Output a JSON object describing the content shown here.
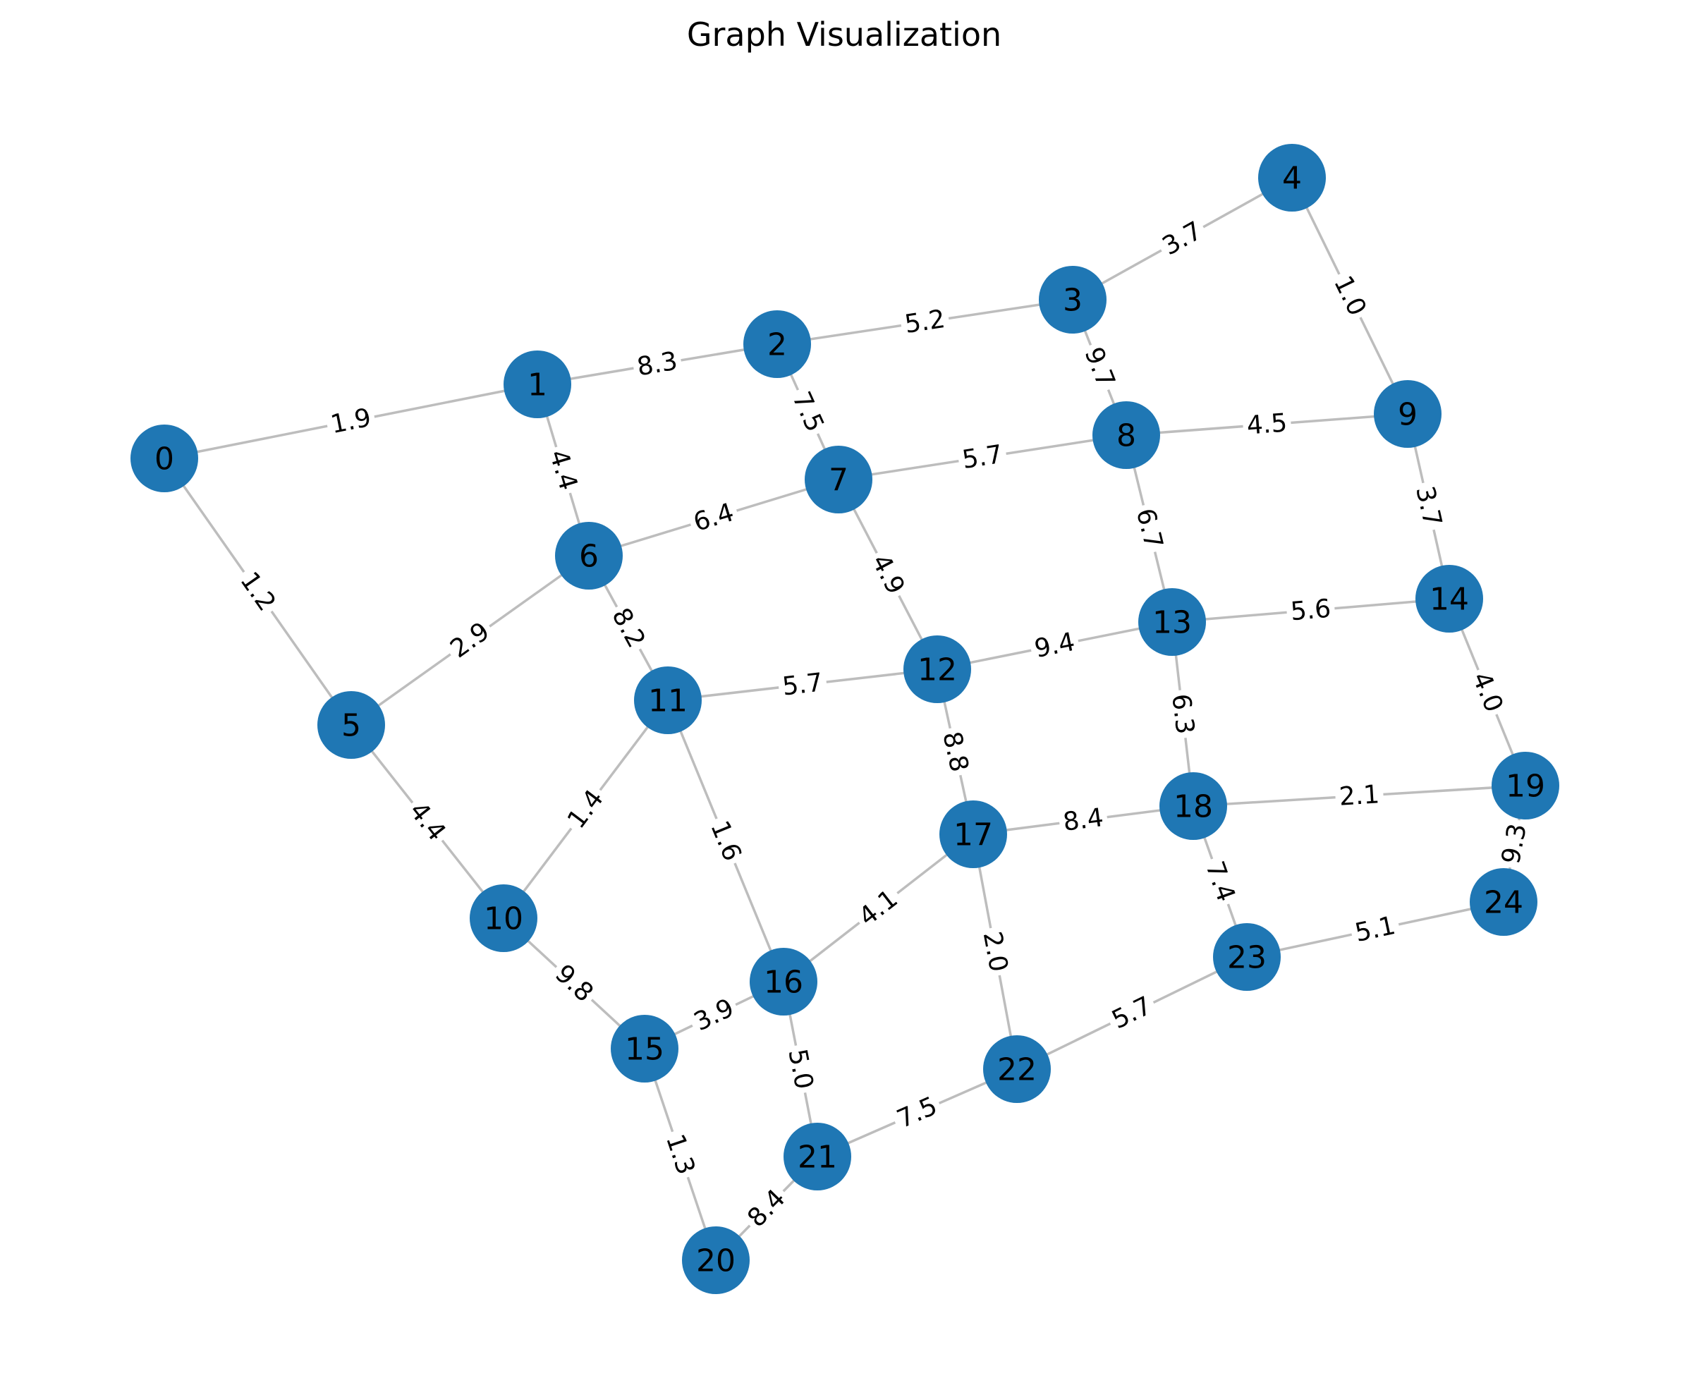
{
  "title": "Graph Visualization",
  "colors": {
    "node": "#1f77b4",
    "edge": "#bdbdbd",
    "label_bg": "#ffffff"
  },
  "nodes": [
    "0",
    "1",
    "2",
    "3",
    "4",
    "5",
    "6",
    "7",
    "8",
    "9",
    "10",
    "11",
    "12",
    "13",
    "14",
    "15",
    "16",
    "17",
    "18",
    "19",
    "20",
    "21",
    "22",
    "23",
    "24"
  ],
  "edges": [
    {
      "source": "0",
      "target": "1",
      "weight": "1.9"
    },
    {
      "source": "0",
      "target": "5",
      "weight": "1.2"
    },
    {
      "source": "1",
      "target": "2",
      "weight": "8.3"
    },
    {
      "source": "1",
      "target": "6",
      "weight": "4.4"
    },
    {
      "source": "2",
      "target": "3",
      "weight": "5.2"
    },
    {
      "source": "2",
      "target": "7",
      "weight": "7.5"
    },
    {
      "source": "3",
      "target": "4",
      "weight": "3.7"
    },
    {
      "source": "3",
      "target": "8",
      "weight": "9.7"
    },
    {
      "source": "4",
      "target": "9",
      "weight": "1.0"
    },
    {
      "source": "5",
      "target": "6",
      "weight": "2.9"
    },
    {
      "source": "5",
      "target": "10",
      "weight": "4.4"
    },
    {
      "source": "6",
      "target": "7",
      "weight": "6.4"
    },
    {
      "source": "6",
      "target": "11",
      "weight": "8.2"
    },
    {
      "source": "7",
      "target": "8",
      "weight": "5.7"
    },
    {
      "source": "7",
      "target": "12",
      "weight": "4.9"
    },
    {
      "source": "8",
      "target": "9",
      "weight": "4.5"
    },
    {
      "source": "8",
      "target": "13",
      "weight": "6.7"
    },
    {
      "source": "9",
      "target": "14",
      "weight": "3.7"
    },
    {
      "source": "10",
      "target": "11",
      "weight": "1.4"
    },
    {
      "source": "10",
      "target": "15",
      "weight": "9.8"
    },
    {
      "source": "11",
      "target": "12",
      "weight": "5.7"
    },
    {
      "source": "11",
      "target": "16",
      "weight": "1.6"
    },
    {
      "source": "12",
      "target": "13",
      "weight": "9.4"
    },
    {
      "source": "12",
      "target": "17",
      "weight": "8.8"
    },
    {
      "source": "13",
      "target": "14",
      "weight": "5.6"
    },
    {
      "source": "13",
      "target": "18",
      "weight": "6.3"
    },
    {
      "source": "14",
      "target": "19",
      "weight": "4.0"
    },
    {
      "source": "15",
      "target": "16",
      "weight": "3.9"
    },
    {
      "source": "15",
      "target": "20",
      "weight": "1.3"
    },
    {
      "source": "16",
      "target": "17",
      "weight": "4.1"
    },
    {
      "source": "16",
      "target": "21",
      "weight": "5.0"
    },
    {
      "source": "17",
      "target": "18",
      "weight": "8.4"
    },
    {
      "source": "17",
      "target": "22",
      "weight": "2.0"
    },
    {
      "source": "18",
      "target": "19",
      "weight": "2.1"
    },
    {
      "source": "18",
      "target": "23",
      "weight": "7.4"
    },
    {
      "source": "19",
      "target": "24",
      "weight": "9.3"
    },
    {
      "source": "20",
      "target": "21",
      "weight": "8.4"
    },
    {
      "source": "21",
      "target": "22",
      "weight": "7.5"
    },
    {
      "source": "22",
      "target": "23",
      "weight": "5.7"
    },
    {
      "source": "23",
      "target": "24",
      "weight": "5.1"
    }
  ]
}
